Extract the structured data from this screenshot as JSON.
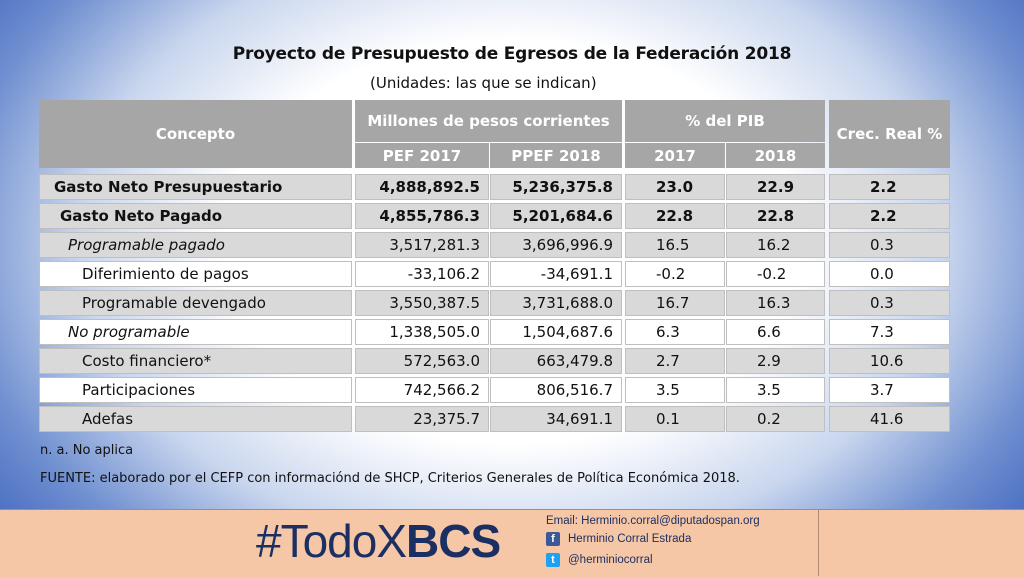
{
  "title": "Proyecto de Presupuesto de Egresos de la Federación 2018",
  "subtitle": "(Unidades: las que se indican)",
  "headers": {
    "concepto": "Concepto",
    "millones": "Millones de pesos corrientes",
    "pef2017": "PEF 2017",
    "ppef2018": "PPEF 2018",
    "pib": "% del PIB",
    "pib2017": "2017",
    "pib2018": "2018",
    "crec": "Crec. Real %"
  },
  "rows": [
    {
      "concepto": "Gasto Neto Presupuestario",
      "pef2017": "4,888,892.5",
      "ppef2018": "5,236,375.8",
      "pib2017": "23.0",
      "pib2018": "22.9",
      "crec": "2.2"
    },
    {
      "concepto": "Gasto Neto Pagado",
      "pef2017": "4,855,786.3",
      "ppef2018": "5,201,684.6",
      "pib2017": "22.8",
      "pib2018": "22.8",
      "crec": "2.2"
    },
    {
      "concepto": "Programable pagado",
      "pef2017": "3,517,281.3",
      "ppef2018": "3,696,996.9",
      "pib2017": "16.5",
      "pib2018": "16.2",
      "crec": "0.3"
    },
    {
      "concepto": "Diferimiento de pagos",
      "pef2017": "-33,106.2",
      "ppef2018": "-34,691.1",
      "pib2017": "-0.2",
      "pib2018": "-0.2",
      "crec": "0.0"
    },
    {
      "concepto": "Programable devengado",
      "pef2017": "3,550,387.5",
      "ppef2018": "3,731,688.0",
      "pib2017": "16.7",
      "pib2018": "16.3",
      "crec": "0.3"
    },
    {
      "concepto": "No programable",
      "pef2017": "1,338,505.0",
      "ppef2018": "1,504,687.6",
      "pib2017": "6.3",
      "pib2018": "6.6",
      "crec": "7.3"
    },
    {
      "concepto": "Costo financiero*",
      "pef2017": "572,563.0",
      "ppef2018": "663,479.8",
      "pib2017": "2.7",
      "pib2018": "2.9",
      "crec": "10.6"
    },
    {
      "concepto": "Participaciones",
      "pef2017": "742,566.2",
      "ppef2018": "806,516.7",
      "pib2017": "3.5",
      "pib2018": "3.5",
      "crec": "3.7"
    },
    {
      "concepto": "Adefas",
      "pef2017": "23,375.7",
      "ppef2018": "34,691.1",
      "pib2017": "0.1",
      "pib2018": "0.2",
      "crec": "41.6"
    }
  ],
  "notes": {
    "na": "n. a. No aplica",
    "fuente": "FUENTE: elaborado por el CEFP con informaciónd de SHCP, Criterios Generales de Política Económica 2018."
  },
  "footer": {
    "hashtag_prefix": "#TodoX",
    "hashtag_bold": "BCS",
    "email": "Email: Herminio.corral@diputadospan.org",
    "facebook": "Herminio Corral Estrada",
    "twitter": "@herminiocorral",
    "facebook_icon": "f",
    "twitter_icon": "t"
  }
}
